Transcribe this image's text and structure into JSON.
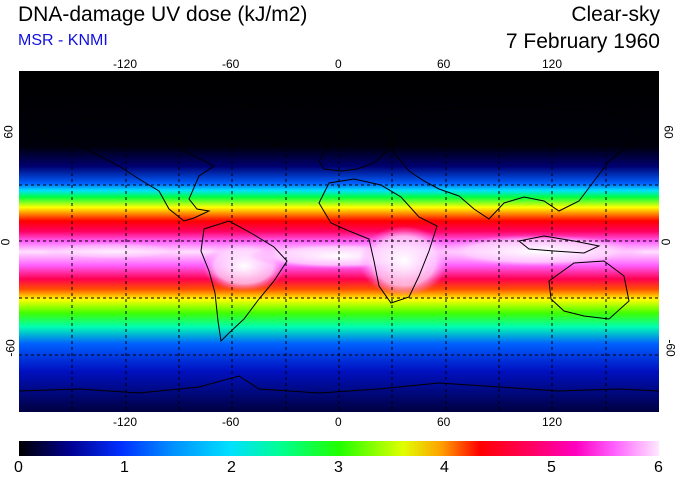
{
  "title": "DNA-damage UV dose (kJ/m2)",
  "source": "MSR - KNMI",
  "condition": "Clear-sky",
  "date": "7 February 1960",
  "map": {
    "projection": "equirectangular",
    "lon_range": [
      -180,
      180
    ],
    "lat_range": [
      -90,
      90
    ],
    "grid": true,
    "lon_ticks": [
      "-120",
      "-60",
      "0",
      "60",
      "120"
    ],
    "lat_ticks_left": [
      "60",
      "0",
      "-60"
    ],
    "lat_ticks_right": [
      "60",
      "0",
      "-60"
    ]
  },
  "colorbar": {
    "ticks": [
      "0",
      "1",
      "2",
      "3",
      "4",
      "5",
      "6"
    ],
    "range": [
      0,
      6
    ],
    "colors": [
      "#000000",
      "#0000c0",
      "#00e0ff",
      "#20ff00",
      "#ffff00",
      "#ff0000",
      "#ff00c0",
      "#ffffff"
    ]
  }
}
